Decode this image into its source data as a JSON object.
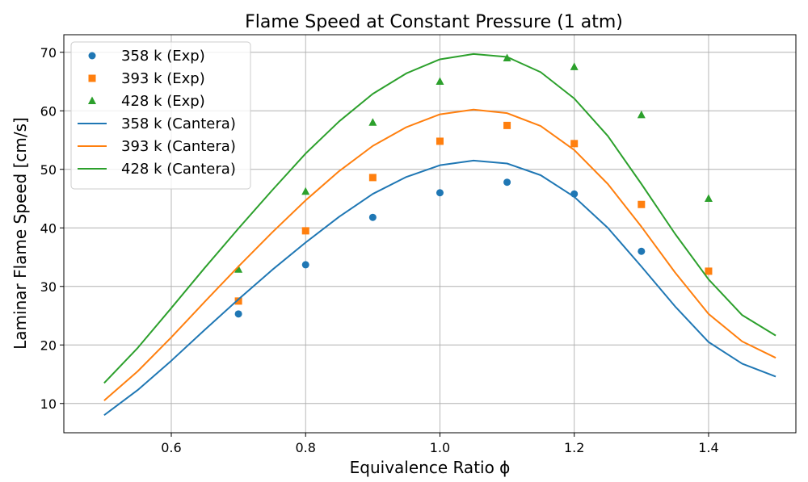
{
  "chart_data": {
    "type": "line",
    "title": "Flame Speed at Constant Pressure (1 atm)",
    "xlabel": "Equivalence Ratio ϕ",
    "ylabel": "Laminar Flame Speed [cm/s]",
    "xlim": [
      0.44,
      1.53
    ],
    "ylim": [
      5,
      73
    ],
    "xticks": [
      0.6,
      0.8,
      1.0,
      1.2,
      1.4
    ],
    "xtick_labels": [
      "0.6",
      "0.8",
      "1.0",
      "1.2",
      "1.4"
    ],
    "yticks": [
      10,
      20,
      30,
      40,
      50,
      60,
      70
    ],
    "ytick_labels": [
      "10",
      "20",
      "30",
      "40",
      "50",
      "60",
      "70"
    ],
    "grid": true,
    "legend_position": "top-left",
    "series": [
      {
        "name": "358 k (Exp)",
        "kind": "scatter",
        "marker": "circle",
        "color": "#1f77b4",
        "x": [
          0.7,
          0.8,
          0.9,
          1.0,
          1.1,
          1.2,
          1.3
        ],
        "y": [
          25.3,
          33.7,
          41.8,
          46.0,
          47.8,
          45.8,
          36.0
        ]
      },
      {
        "name": "393 k (Exp)",
        "kind": "scatter",
        "marker": "square",
        "color": "#ff7f0e",
        "x": [
          0.7,
          0.8,
          0.9,
          1.0,
          1.1,
          1.2,
          1.3,
          1.4
        ],
        "y": [
          27.5,
          39.5,
          48.6,
          54.8,
          57.5,
          54.4,
          44.0,
          32.6
        ]
      },
      {
        "name": "428 k (Exp)",
        "kind": "scatter",
        "marker": "triangle",
        "color": "#2ca02c",
        "x": [
          0.7,
          0.8,
          0.9,
          1.0,
          1.1,
          1.2,
          1.3,
          1.4
        ],
        "y": [
          32.9,
          46.2,
          58.0,
          65.0,
          69.0,
          67.5,
          59.3,
          45.0
        ]
      },
      {
        "name": "358 k (Cantera)",
        "kind": "line",
        "color": "#1f77b4",
        "x": [
          0.5,
          0.55,
          0.6,
          0.65,
          0.7,
          0.75,
          0.8,
          0.85,
          0.9,
          0.95,
          1.0,
          1.05,
          1.1,
          1.15,
          1.2,
          1.25,
          1.3,
          1.35,
          1.4,
          1.45,
          1.5
        ],
        "y": [
          8.0,
          12.3,
          17.3,
          22.6,
          27.8,
          32.8,
          37.5,
          41.9,
          45.8,
          48.7,
          50.7,
          51.5,
          51.0,
          49.0,
          45.3,
          40.0,
          33.4,
          26.6,
          20.5,
          16.8,
          14.6
        ]
      },
      {
        "name": "393 k (Cantera)",
        "kind": "line",
        "color": "#ff7f0e",
        "x": [
          0.5,
          0.55,
          0.6,
          0.65,
          0.7,
          0.75,
          0.8,
          0.85,
          0.9,
          0.95,
          1.0,
          1.05,
          1.1,
          1.15,
          1.2,
          1.25,
          1.3,
          1.35,
          1.4,
          1.45,
          1.5
        ],
        "y": [
          10.5,
          15.5,
          21.3,
          27.4,
          33.4,
          39.2,
          44.7,
          49.7,
          54.0,
          57.2,
          59.4,
          60.2,
          59.6,
          57.4,
          53.3,
          47.5,
          40.2,
          32.4,
          25.3,
          20.6,
          17.8
        ]
      },
      {
        "name": "428 k (Cantera)",
        "kind": "line",
        "color": "#2ca02c",
        "x": [
          0.5,
          0.55,
          0.6,
          0.65,
          0.7,
          0.75,
          0.8,
          0.85,
          0.9,
          0.95,
          1.0,
          1.05,
          1.1,
          1.15,
          1.2,
          1.25,
          1.3,
          1.35,
          1.4,
          1.45,
          1.5
        ],
        "y": [
          13.5,
          19.5,
          26.3,
          33.2,
          39.9,
          46.4,
          52.7,
          58.2,
          62.9,
          66.4,
          68.8,
          69.7,
          69.2,
          66.6,
          62.1,
          55.7,
          47.5,
          39.0,
          31.2,
          25.1,
          21.6
        ]
      }
    ]
  }
}
